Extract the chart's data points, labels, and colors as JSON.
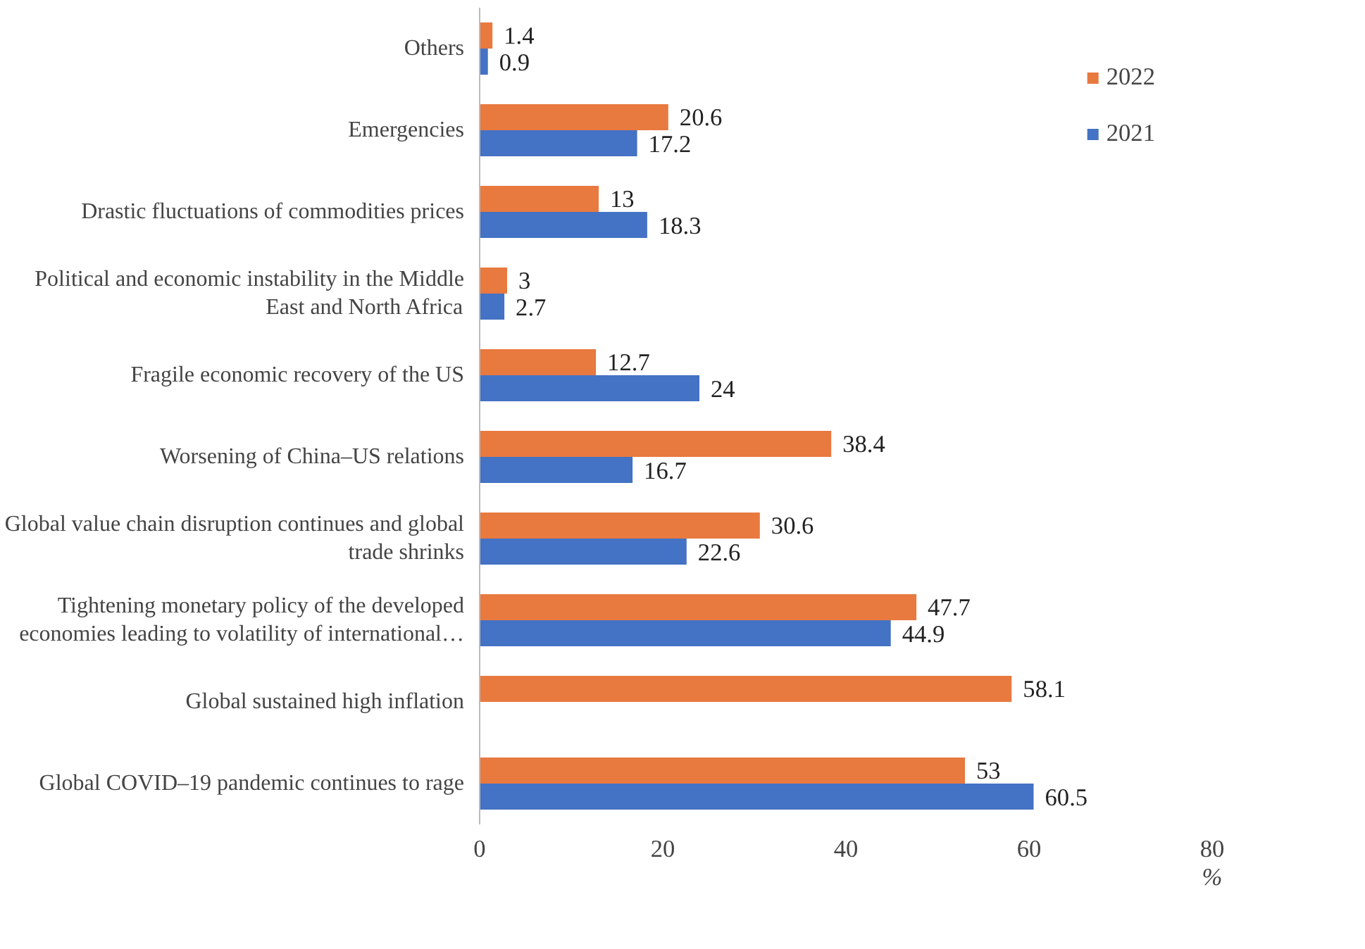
{
  "chart_data": {
    "type": "bar",
    "orientation": "horizontal",
    "xlabel": "%",
    "categories": [
      "Others",
      "Emergencies",
      "Drastic fluctuations of commodities prices",
      "Political and economic instability in the Middle East and North Africa",
      "Fragile economic recovery of the US",
      "Worsening of China–US relations",
      "Global value chain disruption continues and global trade shrinks",
      "Tightening monetary policy of the developed economies leading to volatility of international…",
      "Global sustained high inflation",
      "Global COVID–19 pandemic continues to rage"
    ],
    "series": [
      {
        "name": "2022",
        "color": "#e8793f",
        "values": [
          1.4,
          20.6,
          13,
          3,
          12.7,
          38.4,
          30.6,
          47.7,
          58.1,
          53
        ]
      },
      {
        "name": "2021",
        "color": "#4472c4",
        "values": [
          0.9,
          17.2,
          18.3,
          2.7,
          24,
          16.7,
          22.6,
          44.9,
          null,
          60.5
        ]
      }
    ],
    "xlim": [
      0,
      80
    ],
    "xticks": [
      0,
      20,
      40,
      60,
      80
    ],
    "data_labels": true,
    "grid": false,
    "legend": "top right"
  }
}
